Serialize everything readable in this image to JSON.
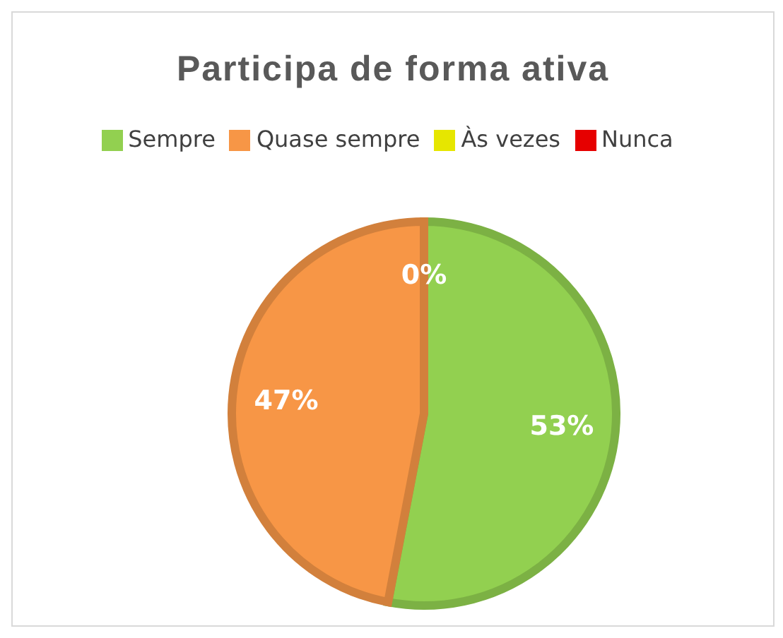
{
  "chart_data": {
    "type": "pie",
    "title": "Participa de forma ativa",
    "categories": [
      "Sempre",
      "Quase sempre",
      "Às vezes",
      "Nunca"
    ],
    "values": [
      53,
      47,
      0,
      0
    ],
    "colors": [
      "#92d050",
      "#f79646",
      "#e6e600",
      "#e60000"
    ],
    "value_labels": [
      "53%",
      "47%",
      "0%",
      null
    ],
    "legend": "top"
  }
}
